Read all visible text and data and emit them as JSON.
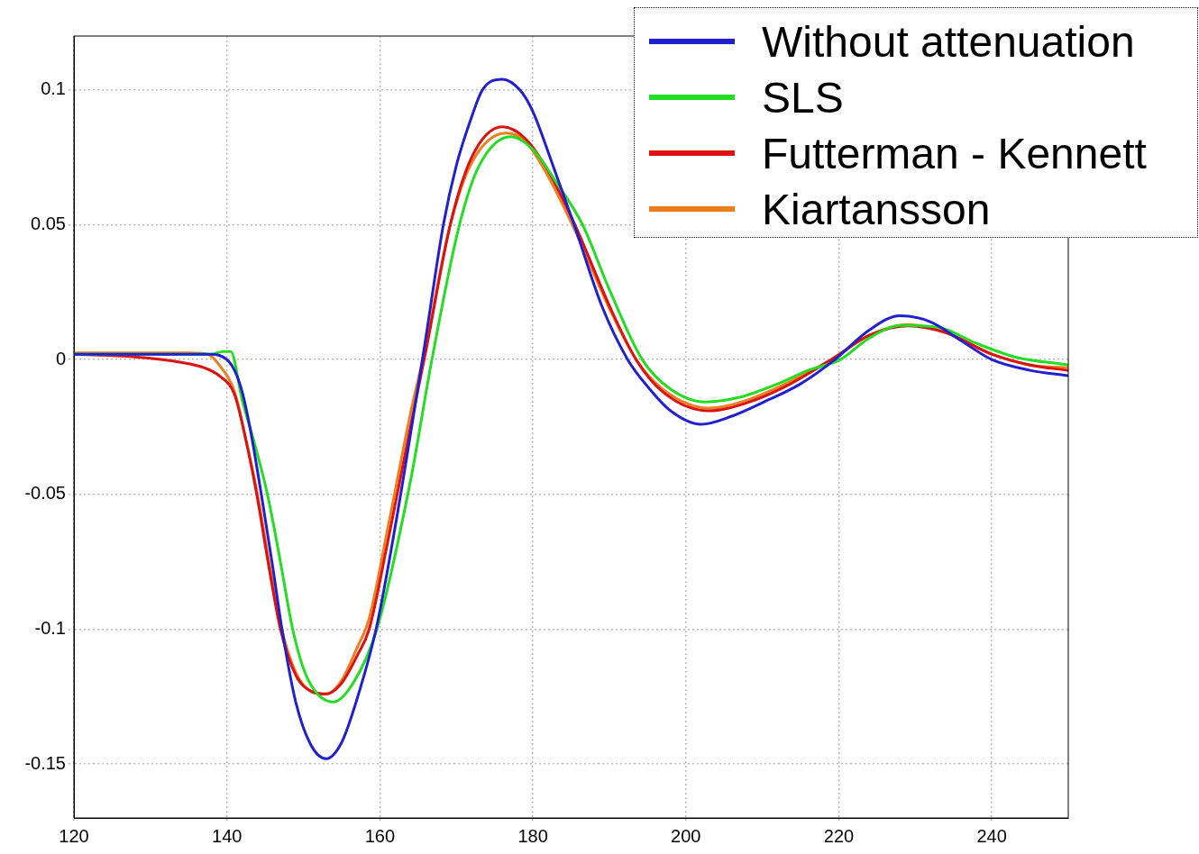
{
  "chart_data": {
    "type": "line",
    "xlim": [
      120,
      250
    ],
    "xticks": [
      120,
      140,
      160,
      180,
      200,
      220,
      240
    ],
    "ylim": [
      -0.17,
      0.12
    ],
    "yticks": [
      -0.15,
      -0.1,
      -0.05,
      0,
      0.05,
      0.1
    ],
    "grid": true,
    "legend": "top right",
    "marker": "none",
    "line_style": "solid",
    "series": [
      {
        "name": "Without attenuation",
        "color": "#2020d0",
        "x": [
          120,
          130,
          138,
          140,
          141,
          142,
          143,
          144.5,
          146,
          147.2,
          149,
          151,
          153,
          155,
          157,
          159.5,
          162,
          165,
          166,
          168.3,
          170,
          172,
          173.4,
          176,
          178.3,
          180,
          182.5,
          185.4,
          189,
          192.4,
          195,
          198,
          202,
          206,
          210,
          215,
          219.5,
          224,
          228,
          232,
          236,
          240,
          245,
          250
        ],
        "values": [
          0.002,
          0.002,
          0.002,
          0.0,
          -0.004,
          -0.012,
          -0.025,
          -0.05,
          -0.077,
          -0.1,
          -0.127,
          -0.143,
          -0.148,
          -0.142,
          -0.126,
          -0.1,
          -0.062,
          -0.01,
          0.008,
          0.05,
          0.072,
          0.09,
          0.1,
          0.104,
          0.1,
          0.092,
          0.073,
          0.05,
          0.02,
          0.0,
          -0.01,
          -0.019,
          -0.024,
          -0.021,
          -0.016,
          -0.009,
          0.0,
          0.011,
          0.0163,
          0.014,
          0.007,
          0.0,
          -0.004,
          -0.006
        ]
      },
      {
        "name": "SLS",
        "color": "#22dd22",
        "x": [
          120,
          138,
          139.5,
          140.5,
          142,
          143.5,
          145.3,
          147,
          148.6,
          150.5,
          153.9,
          156.5,
          159.6,
          164,
          166.8,
          170.4,
          173,
          177.1,
          180,
          183,
          186.5,
          190,
          194.3,
          198,
          202.6,
          207,
          212,
          216,
          220.2,
          224,
          228.1,
          233,
          238,
          243,
          250
        ],
        "values": [
          0.002,
          0.002,
          0.003,
          0.003,
          -0.015,
          -0.03,
          -0.05,
          -0.075,
          -0.1,
          -0.118,
          -0.127,
          -0.12,
          -0.1,
          -0.045,
          0.0,
          0.05,
          0.072,
          0.0827,
          0.078,
          0.066,
          0.05,
          0.026,
          0.0,
          -0.011,
          -0.0157,
          -0.014,
          -0.009,
          -0.004,
          0.0,
          0.008,
          0.0127,
          0.012,
          0.006,
          0.001,
          -0.002
        ]
      },
      {
        "name": "Futterman - Kennett",
        "color": "#dd1111",
        "x": [
          120,
          128,
          134,
          137,
          139,
          141,
          142.5,
          143.9,
          145.5,
          147,
          149,
          151,
          153,
          155,
          157,
          158.6,
          161,
          164,
          166,
          169.2,
          172,
          176,
          179,
          182,
          185.5,
          190,
          193.5,
          197,
          203,
          208,
          213,
          219,
          224,
          229,
          234,
          240,
          245,
          250
        ],
        "values": [
          0.002,
          0.001,
          -0.001,
          -0.003,
          -0.006,
          -0.013,
          -0.03,
          -0.05,
          -0.077,
          -0.1,
          -0.117,
          -0.123,
          -0.124,
          -0.12,
          -0.11,
          -0.1,
          -0.068,
          -0.025,
          0.003,
          0.05,
          0.075,
          0.0863,
          0.082,
          0.07,
          0.05,
          0.02,
          0.0,
          -0.012,
          -0.019,
          -0.016,
          -0.01,
          0.0,
          0.009,
          0.0125,
          0.01,
          0.002,
          -0.002,
          -0.004
        ]
      },
      {
        "name": "Kiartansson",
        "color": "#ee7f1d",
        "x": [
          120,
          135,
          137.5,
          139,
          141,
          142.5,
          144,
          145.5,
          147,
          149,
          151,
          153,
          155,
          157,
          158.6,
          161,
          164,
          166,
          169.2,
          172,
          176.5,
          179,
          182,
          185.5,
          190,
          193.5,
          197,
          203,
          208,
          213,
          219,
          224,
          229,
          234,
          240,
          245,
          250
        ],
        "values": [
          0.0025,
          0.0025,
          0.002,
          -0.002,
          -0.012,
          -0.03,
          -0.05,
          -0.075,
          -0.098,
          -0.116,
          -0.123,
          -0.124,
          -0.119,
          -0.107,
          -0.096,
          -0.063,
          -0.02,
          0.005,
          0.05,
          0.073,
          0.084,
          0.081,
          0.068,
          0.048,
          0.019,
          0.0,
          -0.011,
          -0.018,
          -0.015,
          -0.009,
          0.0,
          0.009,
          0.013,
          0.01,
          0.002,
          -0.002,
          -0.003
        ]
      }
    ]
  }
}
